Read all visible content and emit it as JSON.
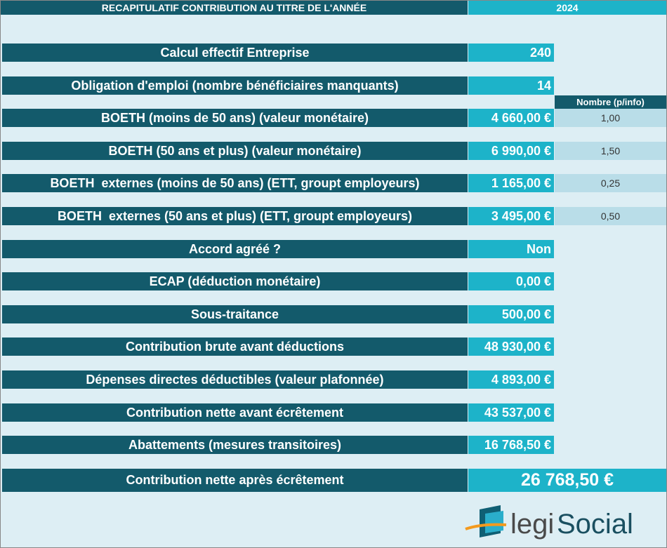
{
  "header": {
    "title": "RECAPITULATIF CONTRIBUTION AU TITRE DE L'ANNÉE",
    "year": "2024"
  },
  "info_header": "Nombre (p/info)",
  "rows": [
    {
      "label": "Calcul effectif Entreprise",
      "value": "240"
    },
    {
      "label": "Obligation d'emploi (nombre bénéficiaires manquants)",
      "value": "14"
    },
    {
      "label": "BOETH (moins de 50 ans) (valeur monétaire)",
      "value": "4 660,00 €",
      "info": "1,00"
    },
    {
      "label": "BOETH (50 ans et plus) (valeur monétaire)",
      "value": "6 990,00 €",
      "info": "1,50"
    },
    {
      "label": "BOETH  externes (moins de 50 ans) (ETT, groupt employeurs)",
      "value": "1 165,00 €",
      "info": "0,25"
    },
    {
      "label": "BOETH  externes (50 ans et plus) (ETT, groupt employeurs)",
      "value": "3 495,00 €",
      "info": "0,50"
    },
    {
      "label": "Accord agréé ?",
      "value": "Non"
    },
    {
      "label": "ECAP (déduction monétaire)",
      "value": "0,00 €"
    },
    {
      "label": "Sous-traitance",
      "value": "500,00 €"
    },
    {
      "label": "Contribution brute avant déductions",
      "value": "48 930,00 €"
    },
    {
      "label": "Dépenses directes déductibles (valeur plafonnée)",
      "value": "4 893,00 €"
    },
    {
      "label": "Contribution nette avant écrêtement",
      "value": "43 537,00 €"
    },
    {
      "label": "Abattements (mesures transitoires)",
      "value": "16 768,50 €"
    }
  ],
  "total": {
    "label": "Contribution nette après écrêtement",
    "value": "26 768,50 €"
  },
  "logo": {
    "part1": "legi",
    "part2": "Social"
  }
}
